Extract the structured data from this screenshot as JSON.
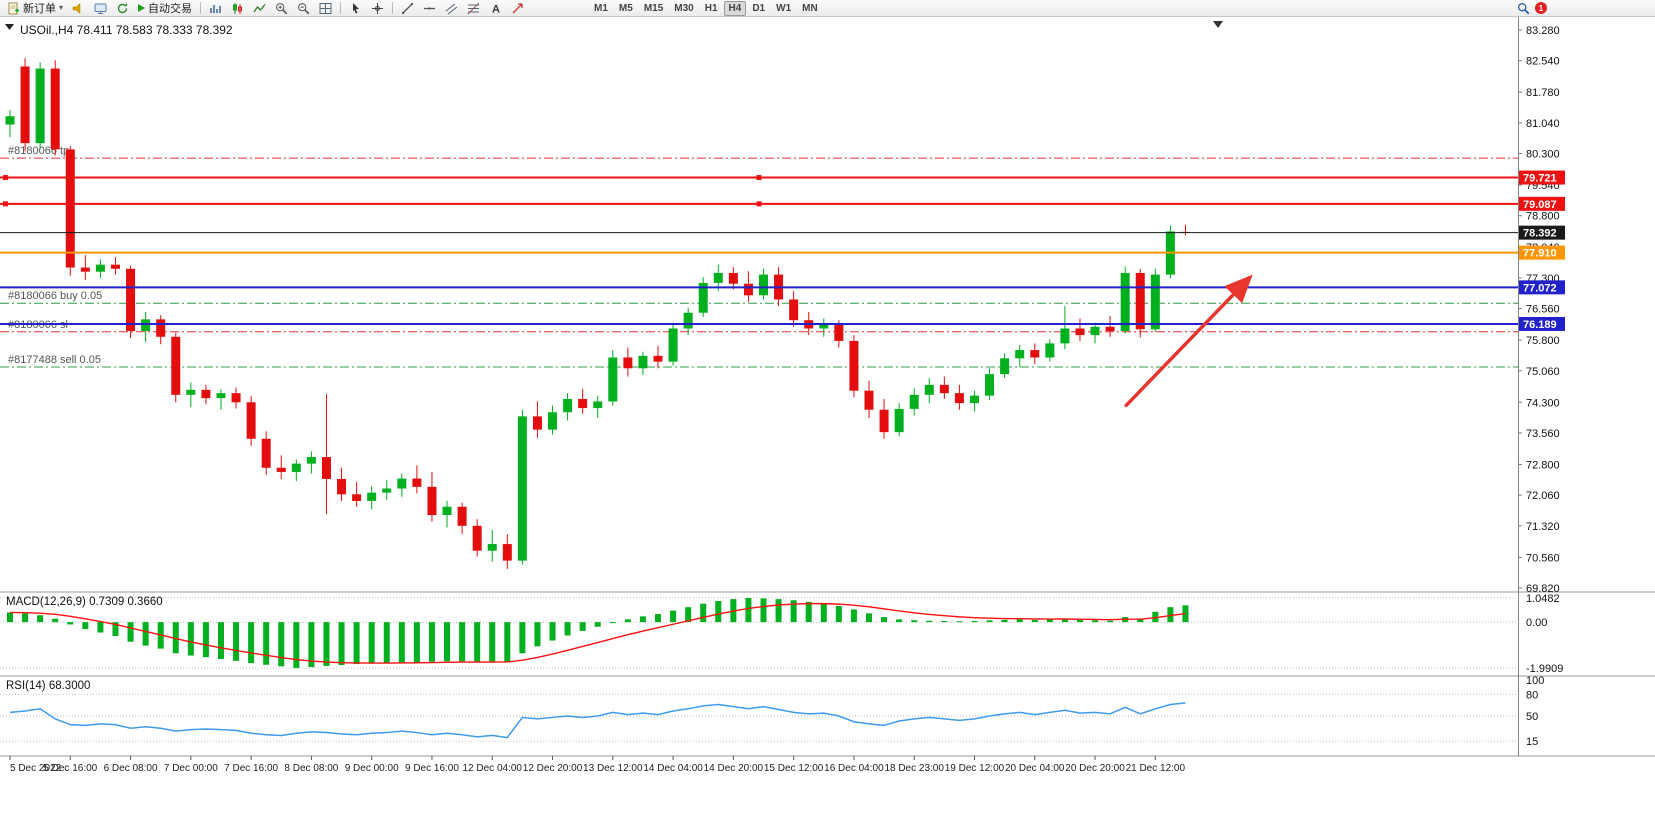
{
  "toolbar": {
    "new_order_label": "新订单",
    "auto_trading_label": "自动交易",
    "timeframes": [
      "M1",
      "M5",
      "M15",
      "M30",
      "H1",
      "H4",
      "D1",
      "W1",
      "MN"
    ],
    "active_timeframe": "H4",
    "notification_badge": "1"
  },
  "chart": {
    "symbol": "USOil.",
    "period": "H4",
    "open": "78.411",
    "high": "78.583",
    "low": "78.333",
    "close": "78.392"
  },
  "chart_data": {
    "type": "candlestick",
    "title": "USOil.,H4 78.411 78.583 78.333 78.392",
    "price_axis": {
      "min": 69.82,
      "max": 83.28,
      "ticks": [
        "83.280",
        "82.540",
        "81.780",
        "81.040",
        "80.300",
        "79.540",
        "78.800",
        "78.040",
        "77.300",
        "76.560",
        "75.800",
        "75.060",
        "74.300",
        "73.560",
        "72.800",
        "72.060",
        "71.320",
        "70.560",
        "69.820"
      ]
    },
    "time_labels": [
      "5 Dec 2022",
      "5 Dec 16:00",
      "6 Dec 08:00",
      "7 Dec 00:00",
      "7 Dec 16:00",
      "8 Dec 08:00",
      "9 Dec 00:00",
      "9 Dec 16:00",
      "12 Dec 04:00",
      "12 Dec 20:00",
      "13 Dec 12:00",
      "14 Dec 04:00",
      "14 Dec 20:00",
      "15 Dec 12:00",
      "16 Dec 04:00",
      "18 Dec 23:00",
      "19 Dec 12:00",
      "20 Dec 04:00",
      "20 Dec 20:00",
      "21 Dec 12:00"
    ],
    "colors": {
      "up": "#00b01e",
      "down": "#e30d0d"
    },
    "candles": [
      [
        81.0,
        81.35,
        80.7,
        81.2
      ],
      [
        82.4,
        82.6,
        80.35,
        80.55
      ],
      [
        80.55,
        82.5,
        80.4,
        82.35
      ],
      [
        82.35,
        82.55,
        80.25,
        80.4
      ],
      [
        80.4,
        80.48,
        77.35,
        77.55
      ],
      [
        77.55,
        77.85,
        77.25,
        77.45
      ],
      [
        77.45,
        77.75,
        77.3,
        77.62
      ],
      [
        77.62,
        77.8,
        77.38,
        77.52
      ],
      [
        77.52,
        77.6,
        75.85,
        76.02
      ],
      [
        76.02,
        76.48,
        75.75,
        76.3
      ],
      [
        76.3,
        76.4,
        75.7,
        75.88
      ],
      [
        75.88,
        75.98,
        74.3,
        74.48
      ],
      [
        74.48,
        74.78,
        74.18,
        74.6
      ],
      [
        74.6,
        74.72,
        74.25,
        74.4
      ],
      [
        74.4,
        74.62,
        74.12,
        74.52
      ],
      [
        74.52,
        74.66,
        74.15,
        74.3
      ],
      [
        74.3,
        74.45,
        73.25,
        73.42
      ],
      [
        73.42,
        73.6,
        72.55,
        72.72
      ],
      [
        72.72,
        73.02,
        72.45,
        72.62
      ],
      [
        72.62,
        72.92,
        72.4,
        72.82
      ],
      [
        72.82,
        73.12,
        72.58,
        72.98
      ],
      [
        72.98,
        74.5,
        71.6,
        72.45
      ],
      [
        72.45,
        72.72,
        71.92,
        72.08
      ],
      [
        72.08,
        72.38,
        71.78,
        71.92
      ],
      [
        71.92,
        72.28,
        71.72,
        72.12
      ],
      [
        72.12,
        72.42,
        71.95,
        72.22
      ],
      [
        72.22,
        72.58,
        72.02,
        72.46
      ],
      [
        72.46,
        72.78,
        72.1,
        72.26
      ],
      [
        72.26,
        72.62,
        71.42,
        71.58
      ],
      [
        71.58,
        71.92,
        71.28,
        71.78
      ],
      [
        71.78,
        71.88,
        71.12,
        71.32
      ],
      [
        71.32,
        71.48,
        70.58,
        70.72
      ],
      [
        70.72,
        71.22,
        70.45,
        70.88
      ],
      [
        70.88,
        71.12,
        70.28,
        70.48
      ],
      [
        70.48,
        74.12,
        70.38,
        73.96
      ],
      [
        73.96,
        74.32,
        73.44,
        73.64
      ],
      [
        73.64,
        74.22,
        73.52,
        74.06
      ],
      [
        74.06,
        74.52,
        73.86,
        74.38
      ],
      [
        74.38,
        74.62,
        74.02,
        74.16
      ],
      [
        74.16,
        74.46,
        73.92,
        74.32
      ],
      [
        74.32,
        75.56,
        74.22,
        75.38
      ],
      [
        75.38,
        75.62,
        74.92,
        75.12
      ],
      [
        75.12,
        75.52,
        74.96,
        75.42
      ],
      [
        75.42,
        75.66,
        75.12,
        75.28
      ],
      [
        75.28,
        76.22,
        75.18,
        76.08
      ],
      [
        76.08,
        76.58,
        75.92,
        76.46
      ],
      [
        76.46,
        77.32,
        76.36,
        77.18
      ],
      [
        77.18,
        77.62,
        76.98,
        77.42
      ],
      [
        77.42,
        77.56,
        77.02,
        77.16
      ],
      [
        77.16,
        77.46,
        76.72,
        76.88
      ],
      [
        76.88,
        77.52,
        76.78,
        77.38
      ],
      [
        77.38,
        77.56,
        76.62,
        76.78
      ],
      [
        76.78,
        76.98,
        76.12,
        76.28
      ],
      [
        76.28,
        76.48,
        75.92,
        76.08
      ],
      [
        76.08,
        76.32,
        75.88,
        76.18
      ],
      [
        76.18,
        76.28,
        75.62,
        75.78
      ],
      [
        75.78,
        75.92,
        74.42,
        74.58
      ],
      [
        74.58,
        74.82,
        73.92,
        74.12
      ],
      [
        74.12,
        74.38,
        73.42,
        73.58
      ],
      [
        73.58,
        74.28,
        73.48,
        74.14
      ],
      [
        74.14,
        74.64,
        73.98,
        74.48
      ],
      [
        74.48,
        74.88,
        74.28,
        74.72
      ],
      [
        74.72,
        74.92,
        74.38,
        74.52
      ],
      [
        74.52,
        74.72,
        74.12,
        74.28
      ],
      [
        74.28,
        74.58,
        74.08,
        74.46
      ],
      [
        74.46,
        75.12,
        74.36,
        74.98
      ],
      [
        74.98,
        75.48,
        74.88,
        75.36
      ],
      [
        75.36,
        75.68,
        75.16,
        75.56
      ],
      [
        75.56,
        75.72,
        75.22,
        75.38
      ],
      [
        75.38,
        75.82,
        75.28,
        75.72
      ],
      [
        75.72,
        76.62,
        75.58,
        76.08
      ],
      [
        76.08,
        76.32,
        75.78,
        75.92
      ],
      [
        75.92,
        76.22,
        75.72,
        76.12
      ],
      [
        76.12,
        76.38,
        75.88,
        76.02
      ],
      [
        76.02,
        77.58,
        75.96,
        77.42
      ],
      [
        77.42,
        77.52,
        75.86,
        76.06
      ],
      [
        76.06,
        77.52,
        76.0,
        77.38
      ],
      [
        77.38,
        78.56,
        77.28,
        78.42
      ],
      [
        78.41,
        78.58,
        78.33,
        78.39
      ]
    ],
    "hlines": [
      {
        "price": 79.721,
        "color": "#ee1111",
        "width": 2,
        "tag": true,
        "handles": true
      },
      {
        "price": 79.087,
        "color": "#ee1111",
        "width": 2,
        "tag": true,
        "handles": true
      },
      {
        "price": 77.91,
        "color": "#ff9500",
        "width": 2,
        "tag": true
      },
      {
        "price": 77.072,
        "color": "#2222cc",
        "width": 2,
        "tag": true
      },
      {
        "price": 76.189,
        "color": "#2222cc",
        "width": 2,
        "tag": true
      }
    ],
    "order_lines": [
      {
        "price": 80.19,
        "color": "#e03131",
        "label": "#8180066 tp"
      },
      {
        "price": 76.69,
        "color": "#2f9e44",
        "label": "#8180066 buy 0.05"
      },
      {
        "price": 76.0,
        "color": "#e03131",
        "label": "#8180066 sl"
      },
      {
        "price": 75.15,
        "color": "#2f9e44",
        "label": "#8177488 sell 0.05"
      }
    ],
    "current_price": 78.392,
    "arrow": {
      "from_idx": 74,
      "from_price": 74.2,
      "to_idx": 82.3,
      "to_price": 77.32,
      "color": "#e8352e",
      "width": 3.5
    },
    "macd": {
      "name": "MACD(12,26,9)",
      "value": "0.7309",
      "signal": "0.3660",
      "axis": [
        "1.0482",
        "0.00",
        "-1.9909"
      ],
      "max": 1.0482,
      "min": -1.9909,
      "hist_color": "#00b01e",
      "signal_color": "#ff1010",
      "histogram": [
        0.42,
        0.38,
        0.3,
        0.15,
        -0.1,
        -0.3,
        -0.45,
        -0.6,
        -0.85,
        -1.02,
        -1.15,
        -1.35,
        -1.45,
        -1.52,
        -1.6,
        -1.68,
        -1.78,
        -1.85,
        -1.92,
        -1.99,
        -1.95,
        -1.9,
        -1.86,
        -1.82,
        -1.8,
        -1.78,
        -1.75,
        -1.73,
        -1.72,
        -1.7,
        -1.7,
        -1.72,
        -1.73,
        -1.72,
        -1.35,
        -1.05,
        -0.8,
        -0.58,
        -0.38,
        -0.2,
        -0.02,
        0.12,
        0.25,
        0.35,
        0.5,
        0.65,
        0.8,
        0.92,
        1.0,
        1.05,
        1.03,
        1.0,
        0.95,
        0.88,
        0.8,
        0.7,
        0.55,
        0.38,
        0.22,
        0.12,
        0.08,
        0.06,
        0.05,
        0.04,
        0.05,
        0.08,
        0.1,
        0.12,
        0.1,
        0.12,
        0.14,
        0.1,
        0.08,
        0.06,
        0.22,
        0.12,
        0.45,
        0.65,
        0.7309
      ]
    },
    "rsi": {
      "name": "RSI(14)",
      "value": "68.3000",
      "axis": [
        "100",
        "80",
        "50",
        "15"
      ],
      "levels": [
        80,
        50,
        15
      ],
      "line_color": "#3e9bef",
      "values": [
        55,
        57,
        60,
        46,
        38,
        37,
        39,
        38,
        33,
        35,
        33,
        29,
        31,
        32,
        31,
        30,
        26,
        24,
        23,
        26,
        28,
        27,
        25,
        24,
        26,
        27,
        29,
        27,
        24,
        26,
        24,
        21,
        23,
        20,
        48,
        46,
        48,
        50,
        48,
        50,
        55,
        52,
        54,
        52,
        57,
        60,
        64,
        66,
        63,
        60,
        63,
        59,
        55,
        53,
        54,
        50,
        42,
        39,
        37,
        43,
        46,
        48,
        46,
        44,
        46,
        50,
        53,
        55,
        52,
        55,
        58,
        54,
        55,
        53,
        62,
        53,
        60,
        66,
        68.3
      ]
    }
  }
}
